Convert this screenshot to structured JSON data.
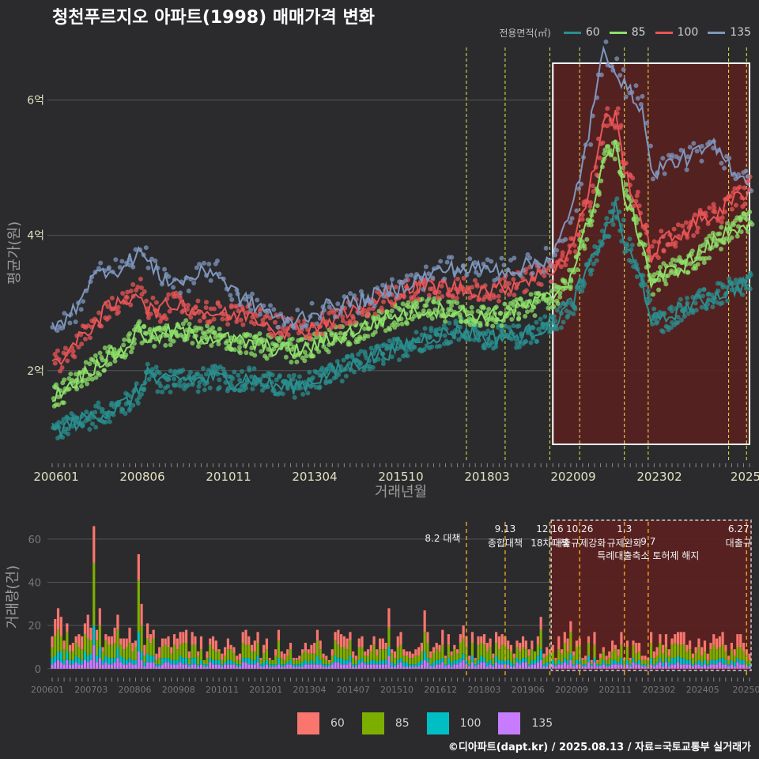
{
  "title": "청천푸르지오 아파트(1998) 매매가격 변화",
  "legend_title": "전용면적(㎡)",
  "footer": "©디아파트(dapt.kr) / 2025.08.13 / 자료=국토교통부 실거래가",
  "colors": {
    "background": "#2b2b2d",
    "grid": "#555555",
    "s60": "#2a8f8f",
    "s85": "#8ee06a",
    "s100": "#e85557",
    "s135": "#7f97bd",
    "v60": "#f8766d",
    "v85": "#7cae00",
    "v100": "#00bfc4",
    "v135": "#c77cff",
    "policy_line": "#e8e84a",
    "policy_line_bottom": "#e0a020",
    "highlight_fill": "#5c2020",
    "highlight_border": "#ffffff"
  },
  "chart_data": [
    {
      "type": "line",
      "name": "price",
      "xlabel": "거래년월",
      "ylabel": "평균가(원)",
      "x_range": [
        "2006-01",
        "2025-07"
      ],
      "ylim": [
        0.7,
        6.8
      ],
      "y_ticks": [
        {
          "value": 2,
          "label": "2억"
        },
        {
          "value": 4,
          "label": "4억"
        },
        {
          "value": 6,
          "label": "6억"
        }
      ],
      "x_tick_labels": [
        "200601",
        "200806",
        "201011",
        "201304",
        "201510",
        "201803",
        "202009",
        "202302",
        "2025"
      ],
      "series": [
        {
          "name": "60",
          "color_key": "s60",
          "points": [
            [
              "2006-01",
              1.1
            ],
            [
              "2006-07",
              1.2
            ],
            [
              "2007-01",
              1.3
            ],
            [
              "2007-07",
              1.4
            ],
            [
              "2008-01",
              1.5
            ],
            [
              "2008-06",
              1.7
            ],
            [
              "2008-09",
              2.0
            ],
            [
              "2009-01",
              1.8
            ],
            [
              "2009-07",
              1.9
            ],
            [
              "2010-01",
              1.85
            ],
            [
              "2010-07",
              1.9
            ],
            [
              "2011-01",
              1.85
            ],
            [
              "2011-07",
              1.9
            ],
            [
              "2012-01",
              1.8
            ],
            [
              "2012-07",
              1.75
            ],
            [
              "2013-01",
              1.8
            ],
            [
              "2013-07",
              1.9
            ],
            [
              "2014-01",
              2.0
            ],
            [
              "2014-07",
              2.1
            ],
            [
              "2015-01",
              2.2
            ],
            [
              "2015-07",
              2.3
            ],
            [
              "2016-01",
              2.4
            ],
            [
              "2016-07",
              2.5
            ],
            [
              "2017-01",
              2.55
            ],
            [
              "2017-07",
              2.6
            ],
            [
              "2018-01",
              2.5
            ],
            [
              "2018-07",
              2.5
            ],
            [
              "2019-01",
              2.5
            ],
            [
              "2019-07",
              2.6
            ],
            [
              "2020-01",
              2.7
            ],
            [
              "2020-07",
              3.0
            ],
            [
              "2021-01",
              3.5
            ],
            [
              "2021-06",
              4.0
            ],
            [
              "2021-10",
              4.4
            ],
            [
              "2022-01",
              3.9
            ],
            [
              "2022-07",
              3.3
            ],
            [
              "2022-10",
              2.8
            ],
            [
              "2023-01",
              2.7
            ],
            [
              "2023-07",
              2.9
            ],
            [
              "2024-01",
              3.0
            ],
            [
              "2024-07",
              3.1
            ],
            [
              "2025-01",
              3.2
            ],
            [
              "2025-07",
              3.3
            ]
          ]
        },
        {
          "name": "85",
          "color_key": "s85",
          "points": [
            [
              "2006-01",
              1.6
            ],
            [
              "2006-07",
              1.8
            ],
            [
              "2007-01",
              2.0
            ],
            [
              "2007-07",
              2.2
            ],
            [
              "2008-01",
              2.3
            ],
            [
              "2008-06",
              2.6
            ],
            [
              "2008-09",
              2.5
            ],
            [
              "2009-01",
              2.5
            ],
            [
              "2009-07",
              2.6
            ],
            [
              "2010-01",
              2.5
            ],
            [
              "2010-07",
              2.5
            ],
            [
              "2011-01",
              2.45
            ],
            [
              "2011-07",
              2.4
            ],
            [
              "2012-01",
              2.35
            ],
            [
              "2012-07",
              2.3
            ],
            [
              "2013-01",
              2.3
            ],
            [
              "2013-07",
              2.4
            ],
            [
              "2014-01",
              2.5
            ],
            [
              "2014-07",
              2.6
            ],
            [
              "2015-01",
              2.7
            ],
            [
              "2015-07",
              2.8
            ],
            [
              "2016-01",
              2.85
            ],
            [
              "2016-07",
              2.9
            ],
            [
              "2017-01",
              2.9
            ],
            [
              "2017-07",
              2.85
            ],
            [
              "2018-01",
              2.8
            ],
            [
              "2018-07",
              2.8
            ],
            [
              "2019-01",
              2.9
            ],
            [
              "2019-07",
              3.0
            ],
            [
              "2020-01",
              3.1
            ],
            [
              "2020-07",
              3.4
            ],
            [
              "2021-01",
              4.2
            ],
            [
              "2021-06",
              5.1
            ],
            [
              "2021-10",
              5.3
            ],
            [
              "2022-01",
              4.6
            ],
            [
              "2022-07",
              3.9
            ],
            [
              "2022-10",
              3.3
            ],
            [
              "2023-01",
              3.4
            ],
            [
              "2023-07",
              3.5
            ],
            [
              "2024-01",
              3.7
            ],
            [
              "2024-07",
              3.9
            ],
            [
              "2025-01",
              4.1
            ],
            [
              "2025-07",
              4.2
            ]
          ]
        },
        {
          "name": "100",
          "color_key": "s100",
          "points": [
            [
              "2006-01",
              2.1
            ],
            [
              "2006-07",
              2.3
            ],
            [
              "2007-01",
              2.6
            ],
            [
              "2007-07",
              2.9
            ],
            [
              "2008-01",
              3.0
            ],
            [
              "2008-06",
              3.2
            ],
            [
              "2008-09",
              2.9
            ],
            [
              "2009-01",
              2.9
            ],
            [
              "2009-07",
              3.0
            ],
            [
              "2010-01",
              2.9
            ],
            [
              "2010-07",
              2.85
            ],
            [
              "2011-01",
              2.8
            ],
            [
              "2011-07",
              2.85
            ],
            [
              "2012-01",
              2.7
            ],
            [
              "2012-07",
              2.6
            ],
            [
              "2013-01",
              2.6
            ],
            [
              "2013-07",
              2.7
            ],
            [
              "2014-01",
              2.8
            ],
            [
              "2014-07",
              2.9
            ],
            [
              "2015-01",
              3.0
            ],
            [
              "2015-07",
              3.1
            ],
            [
              "2016-01",
              3.2
            ],
            [
              "2016-07",
              3.25
            ],
            [
              "2017-01",
              3.25
            ],
            [
              "2017-07",
              3.2
            ],
            [
              "2018-01",
              3.2
            ],
            [
              "2018-07",
              3.2
            ],
            [
              "2019-01",
              3.3
            ],
            [
              "2019-07",
              3.4
            ],
            [
              "2020-01",
              3.5
            ],
            [
              "2020-07",
              3.8
            ],
            [
              "2021-01",
              4.6
            ],
            [
              "2021-06",
              5.7
            ],
            [
              "2021-10",
              5.75
            ],
            [
              "2022-01",
              5.0
            ],
            [
              "2022-07",
              4.2
            ],
            [
              "2022-10",
              3.7
            ],
            [
              "2023-01",
              3.9
            ],
            [
              "2023-07",
              4.0
            ],
            [
              "2024-01",
              4.2
            ],
            [
              "2024-07",
              4.3
            ],
            [
              "2025-01",
              4.5
            ],
            [
              "2025-07",
              4.7
            ]
          ]
        },
        {
          "name": "135",
          "color_key": "s135",
          "points": [
            [
              "2006-01",
              2.6
            ],
            [
              "2006-07",
              2.8
            ],
            [
              "2007-01",
              3.3
            ],
            [
              "2007-07",
              3.5
            ],
            [
              "2008-01",
              3.5
            ],
            [
              "2008-06",
              3.8
            ],
            [
              "2008-09",
              3.6
            ],
            [
              "2009-01",
              3.4
            ],
            [
              "2009-07",
              3.3
            ],
            [
              "2010-01",
              3.4
            ],
            [
              "2010-07",
              3.5
            ],
            [
              "2011-01",
              3.2
            ],
            [
              "2011-07",
              3.0
            ],
            [
              "2012-01",
              2.9
            ],
            [
              "2012-07",
              2.7
            ],
            [
              "2013-01",
              2.8
            ],
            [
              "2013-07",
              2.9
            ],
            [
              "2014-01",
              3.0
            ],
            [
              "2014-07",
              3.0
            ],
            [
              "2015-01",
              3.1
            ],
            [
              "2015-07",
              3.2
            ],
            [
              "2016-01",
              3.3
            ],
            [
              "2016-07",
              3.4
            ],
            [
              "2017-01",
              3.5
            ],
            [
              "2017-07",
              3.5
            ],
            [
              "2018-01",
              3.5
            ],
            [
              "2018-07",
              3.5
            ],
            [
              "2019-01",
              3.5
            ],
            [
              "2019-07",
              3.6
            ],
            [
              "2020-01",
              3.7
            ],
            [
              "2020-07",
              4.3
            ],
            [
              "2021-01",
              5.5
            ],
            [
              "2021-06",
              6.7
            ],
            [
              "2021-10",
              6.5
            ],
            [
              "2022-01",
              6.2
            ],
            [
              "2022-07",
              5.9
            ],
            [
              "2022-10",
              4.9
            ],
            [
              "2023-01",
              5.0
            ],
            [
              "2023-07",
              5.1
            ],
            [
              "2024-01",
              5.2
            ],
            [
              "2024-07",
              5.3
            ],
            [
              "2025-01",
              5.0
            ],
            [
              "2025-07",
              4.8
            ]
          ]
        }
      ],
      "policy_dates": [
        "2017-08",
        "2018-09",
        "2019-12",
        "2020-10",
        "2022-01",
        "2022-09",
        "2024-12",
        "2025-06"
      ],
      "highlight_range": [
        "2020-01",
        "2025-07"
      ]
    },
    {
      "type": "bar",
      "name": "volume",
      "xlabel": "",
      "ylabel": "거래량(건)",
      "ylim": [
        -3,
        68
      ],
      "y_ticks": [
        0,
        20,
        40,
        60
      ],
      "x_tick_labels": [
        "200601",
        "200703",
        "200806",
        "200908",
        "201011",
        "201201",
        "201304",
        "201407",
        "201510",
        "201612",
        "201803",
        "201906",
        "202009",
        "202111",
        "202302",
        "202405",
        "20250"
      ],
      "legend": [
        "60",
        "85",
        "100",
        "135"
      ],
      "stack_totals_sample": [
        [
          "2006-03",
          28
        ],
        [
          "2007-01",
          25
        ],
        [
          "2007-03",
          66
        ],
        [
          "2007-05",
          28
        ],
        [
          "2008-06",
          53
        ],
        [
          "2008-07",
          30
        ],
        [
          "2010-01",
          15
        ],
        [
          "2012-01",
          14
        ],
        [
          "2014-01",
          18
        ],
        [
          "2015-06",
          28
        ],
        [
          "2016-06",
          27
        ],
        [
          "2017-07",
          20
        ],
        [
          "2018-07",
          15
        ],
        [
          "2019-09",
          24
        ],
        [
          "2020-07",
          22
        ],
        [
          "2021-01",
          15
        ],
        [
          "2022-06",
          12
        ],
        [
          "2023-06",
          16
        ],
        [
          "2024-06",
          12
        ],
        [
          "2025-06",
          9
        ]
      ],
      "annotations": [
        {
          "date": "2017-08",
          "label": "8.2 대책"
        },
        {
          "date": "2018-09",
          "label": "9.13\n종합대책"
        },
        {
          "date": "2019-12",
          "label": "12.16\n18차대책"
        },
        {
          "date": "2020-10",
          "label": "10.26\n대출규제강화"
        },
        {
          "date": "2022-01",
          "label": "1.3\n규제완화"
        },
        {
          "date": "2022-09",
          "label": "9.7\n특례대출축소 토허제 해지"
        },
        {
          "date": "2025-06",
          "label": "6.27\n대출규"
        }
      ],
      "highlight_range": [
        "2020-01",
        "2025-07"
      ]
    }
  ]
}
